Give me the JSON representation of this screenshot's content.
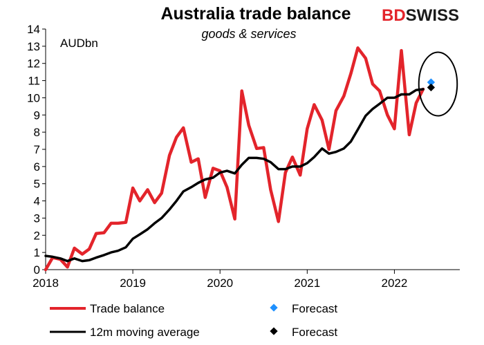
{
  "chart_data": {
    "type": "line",
    "title": "Australia trade balance",
    "subtitle": "goods & services",
    "unit_label": "AUDbn",
    "ylim": [
      0,
      14
    ],
    "yticks": [
      0,
      1,
      2,
      3,
      4,
      5,
      6,
      7,
      8,
      9,
      10,
      11,
      12,
      13,
      14
    ],
    "xlim": [
      2018.0,
      2022.75
    ],
    "xticks": [
      {
        "value": 2018,
        "label": "2018"
      },
      {
        "value": 2019,
        "label": "2019"
      },
      {
        "value": 2020,
        "label": "2020"
      },
      {
        "value": 2021,
        "label": "2021"
      },
      {
        "value": 2022,
        "label": "2022"
      }
    ],
    "grid": false,
    "legend_position": "bottom",
    "series": [
      {
        "name": "Trade balance",
        "color": "#e3242b",
        "points": [
          [
            2018.0,
            0.0
          ],
          [
            2018.08,
            0.7
          ],
          [
            2018.17,
            0.6
          ],
          [
            2018.25,
            0.15
          ],
          [
            2018.33,
            1.25
          ],
          [
            2018.42,
            0.9
          ],
          [
            2018.5,
            1.2
          ],
          [
            2018.58,
            2.1
          ],
          [
            2018.67,
            2.15
          ],
          [
            2018.75,
            2.7
          ],
          [
            2018.83,
            2.7
          ],
          [
            2018.92,
            2.75
          ],
          [
            2019.0,
            4.75
          ],
          [
            2019.08,
            4.0
          ],
          [
            2019.17,
            4.65
          ],
          [
            2019.25,
            3.9
          ],
          [
            2019.33,
            4.45
          ],
          [
            2019.42,
            6.65
          ],
          [
            2019.5,
            7.7
          ],
          [
            2019.58,
            8.25
          ],
          [
            2019.67,
            6.25
          ],
          [
            2019.75,
            6.45
          ],
          [
            2019.83,
            4.2
          ],
          [
            2019.92,
            5.9
          ],
          [
            2020.0,
            5.75
          ],
          [
            2020.08,
            4.8
          ],
          [
            2020.17,
            2.95
          ],
          [
            2020.25,
            10.4
          ],
          [
            2020.33,
            8.4
          ],
          [
            2020.42,
            7.05
          ],
          [
            2020.5,
            7.1
          ],
          [
            2020.58,
            4.65
          ],
          [
            2020.67,
            2.8
          ],
          [
            2020.75,
            5.65
          ],
          [
            2020.83,
            6.55
          ],
          [
            2020.92,
            5.5
          ],
          [
            2021.0,
            8.2
          ],
          [
            2021.08,
            9.6
          ],
          [
            2021.17,
            8.7
          ],
          [
            2021.25,
            7.0
          ],
          [
            2021.33,
            9.25
          ],
          [
            2021.42,
            10.1
          ],
          [
            2021.5,
            11.4
          ],
          [
            2021.58,
            12.9
          ],
          [
            2021.67,
            12.3
          ],
          [
            2021.75,
            10.8
          ],
          [
            2021.83,
            10.4
          ],
          [
            2021.92,
            9.0
          ],
          [
            2022.0,
            8.2
          ],
          [
            2022.08,
            12.75
          ],
          [
            2022.17,
            7.85
          ],
          [
            2022.25,
            9.7
          ],
          [
            2022.33,
            10.5
          ]
        ]
      },
      {
        "name": "12m moving average",
        "color": "#000000",
        "points": [
          [
            2018.0,
            0.8
          ],
          [
            2018.08,
            0.75
          ],
          [
            2018.17,
            0.65
          ],
          [
            2018.25,
            0.5
          ],
          [
            2018.33,
            0.65
          ],
          [
            2018.42,
            0.5
          ],
          [
            2018.5,
            0.55
          ],
          [
            2018.58,
            0.7
          ],
          [
            2018.67,
            0.85
          ],
          [
            2018.75,
            1.0
          ],
          [
            2018.83,
            1.1
          ],
          [
            2018.92,
            1.3
          ],
          [
            2019.0,
            1.8
          ],
          [
            2019.08,
            2.05
          ],
          [
            2019.17,
            2.35
          ],
          [
            2019.25,
            2.7
          ],
          [
            2019.33,
            3.0
          ],
          [
            2019.42,
            3.5
          ],
          [
            2019.5,
            4.0
          ],
          [
            2019.58,
            4.55
          ],
          [
            2019.67,
            4.8
          ],
          [
            2019.75,
            5.05
          ],
          [
            2019.83,
            5.25
          ],
          [
            2019.92,
            5.35
          ],
          [
            2020.0,
            5.65
          ],
          [
            2020.08,
            5.75
          ],
          [
            2020.17,
            5.6
          ],
          [
            2020.25,
            6.1
          ],
          [
            2020.33,
            6.5
          ],
          [
            2020.42,
            6.5
          ],
          [
            2020.5,
            6.45
          ],
          [
            2020.58,
            6.25
          ],
          [
            2020.67,
            5.85
          ],
          [
            2020.75,
            5.85
          ],
          [
            2020.83,
            6.0
          ],
          [
            2020.92,
            6.0
          ],
          [
            2021.0,
            6.2
          ],
          [
            2021.08,
            6.55
          ],
          [
            2021.17,
            7.05
          ],
          [
            2021.25,
            6.75
          ],
          [
            2021.33,
            6.85
          ],
          [
            2021.42,
            7.05
          ],
          [
            2021.5,
            7.45
          ],
          [
            2021.58,
            8.15
          ],
          [
            2021.67,
            8.95
          ],
          [
            2021.75,
            9.35
          ],
          [
            2021.83,
            9.65
          ],
          [
            2021.92,
            10.0
          ],
          [
            2022.0,
            10.0
          ],
          [
            2022.08,
            10.2
          ],
          [
            2022.17,
            10.2
          ],
          [
            2022.25,
            10.45
          ],
          [
            2022.33,
            10.5
          ]
        ]
      }
    ],
    "forecasts": [
      {
        "name": "Forecast",
        "color": "#1e90ff",
        "point": [
          2022.42,
          10.9
        ]
      },
      {
        "name": "Forecast",
        "color": "#000000",
        "point": [
          2022.42,
          10.6
        ]
      }
    ],
    "annotation": {
      "shape": "ellipse",
      "center": [
        2022.5,
        10.8
      ],
      "radius_x": 0.22,
      "radius_y": 1.85
    }
  },
  "logo": {
    "bd": "BD",
    "swiss": "SWISS"
  }
}
